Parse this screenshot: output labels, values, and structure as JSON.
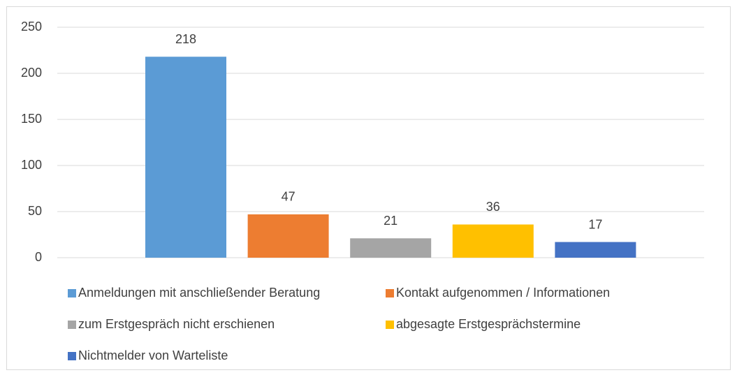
{
  "chart_data": {
    "type": "bar",
    "categories": [
      null
    ],
    "series": [
      {
        "name": "Anmeldungen mit anschließender Beratung",
        "color": "#5b9bd5",
        "values": [
          218
        ]
      },
      {
        "name": "Kontakt aufgenommen / Informationen",
        "color": "#ed7d31",
        "values": [
          47
        ]
      },
      {
        "name": "zum Erstgespräch nicht erschienen",
        "color": "#a5a5a5",
        "values": [
          21
        ]
      },
      {
        "name": "abgesagte Erstgesprächstermine",
        "color": "#ffc000",
        "values": [
          36
        ]
      },
      {
        "name": "Nichtmelder von Warteliste",
        "color": "#4472c4",
        "values": [
          17
        ]
      }
    ],
    "ylim": [
      0,
      250
    ],
    "yticks": [
      0,
      50,
      100,
      150,
      200,
      250
    ],
    "grid": true,
    "legend": "bottom"
  }
}
